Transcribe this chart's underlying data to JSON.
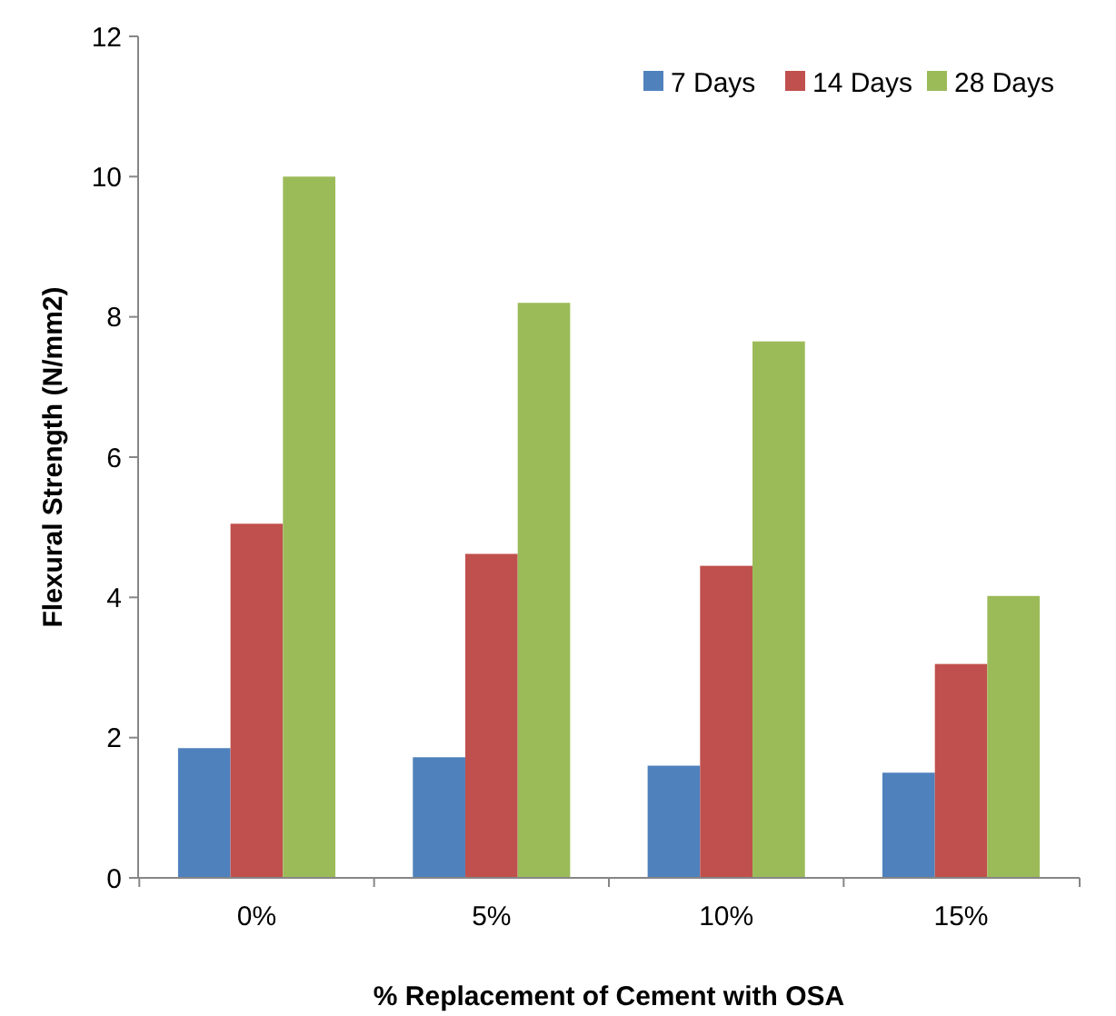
{
  "chart_data": {
    "type": "bar",
    "xlabel": "% Replacement of Cement with OSA",
    "ylabel": "Flexural Strength (N/mm2)",
    "categories": [
      "0%",
      "5%",
      "10%",
      "15%"
    ],
    "series": [
      {
        "name": "7 Days",
        "color": "#4f81bd",
        "values": [
          1.85,
          1.72,
          1.6,
          1.5
        ]
      },
      {
        "name": "14 Days",
        "color": "#c0504d",
        "values": [
          5.05,
          4.62,
          4.45,
          3.05
        ]
      },
      {
        "name": "28 Days",
        "color": "#9bbb59",
        "values": [
          10,
          8.2,
          7.65,
          4.02
        ]
      }
    ],
    "ylim": [
      0,
      12
    ],
    "yticks": [
      0,
      2,
      4,
      6,
      8,
      10,
      12
    ],
    "grid": false,
    "legend": "top right"
  }
}
